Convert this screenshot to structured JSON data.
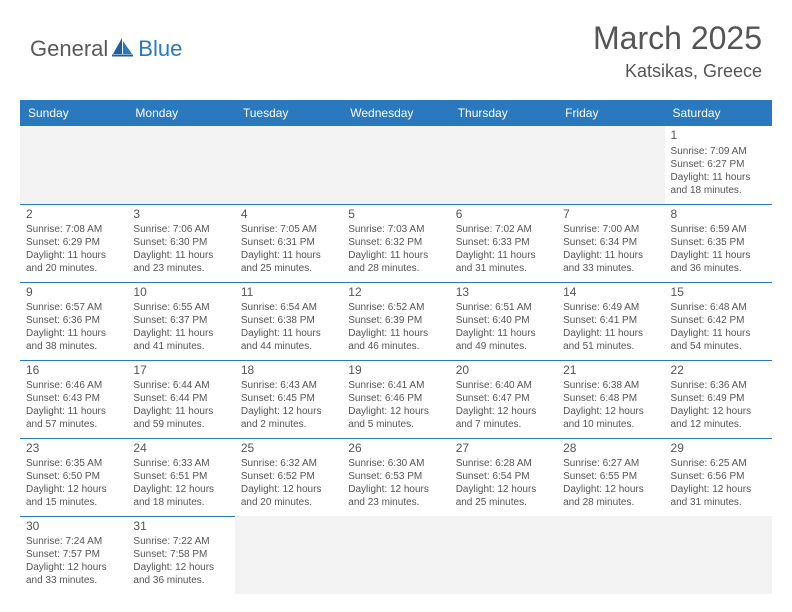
{
  "brand": {
    "part1": "General",
    "part2": "Blue"
  },
  "title": {
    "month_year": "March 2025",
    "location": "Katsikas, Greece"
  },
  "colors": {
    "header_bg": "#2a78bd",
    "header_text": "#ffffff",
    "border": "#2a78bd",
    "empty_bg": "#f3f3f3",
    "body_text": "#555555",
    "logo_gray": "#5a5a5a",
    "logo_blue": "#2a78bd"
  },
  "day_headers": [
    "Sunday",
    "Monday",
    "Tuesday",
    "Wednesday",
    "Thursday",
    "Friday",
    "Saturday"
  ],
  "weeks": [
    [
      null,
      null,
      null,
      null,
      null,
      null,
      {
        "n": "1",
        "sr": "7:09 AM",
        "ss": "6:27 PM",
        "dl": "11 hours and 18 minutes."
      }
    ],
    [
      {
        "n": "2",
        "sr": "7:08 AM",
        "ss": "6:29 PM",
        "dl": "11 hours and 20 minutes."
      },
      {
        "n": "3",
        "sr": "7:06 AM",
        "ss": "6:30 PM",
        "dl": "11 hours and 23 minutes."
      },
      {
        "n": "4",
        "sr": "7:05 AM",
        "ss": "6:31 PM",
        "dl": "11 hours and 25 minutes."
      },
      {
        "n": "5",
        "sr": "7:03 AM",
        "ss": "6:32 PM",
        "dl": "11 hours and 28 minutes."
      },
      {
        "n": "6",
        "sr": "7:02 AM",
        "ss": "6:33 PM",
        "dl": "11 hours and 31 minutes."
      },
      {
        "n": "7",
        "sr": "7:00 AM",
        "ss": "6:34 PM",
        "dl": "11 hours and 33 minutes."
      },
      {
        "n": "8",
        "sr": "6:59 AM",
        "ss": "6:35 PM",
        "dl": "11 hours and 36 minutes."
      }
    ],
    [
      {
        "n": "9",
        "sr": "6:57 AM",
        "ss": "6:36 PM",
        "dl": "11 hours and 38 minutes."
      },
      {
        "n": "10",
        "sr": "6:55 AM",
        "ss": "6:37 PM",
        "dl": "11 hours and 41 minutes."
      },
      {
        "n": "11",
        "sr": "6:54 AM",
        "ss": "6:38 PM",
        "dl": "11 hours and 44 minutes."
      },
      {
        "n": "12",
        "sr": "6:52 AM",
        "ss": "6:39 PM",
        "dl": "11 hours and 46 minutes."
      },
      {
        "n": "13",
        "sr": "6:51 AM",
        "ss": "6:40 PM",
        "dl": "11 hours and 49 minutes."
      },
      {
        "n": "14",
        "sr": "6:49 AM",
        "ss": "6:41 PM",
        "dl": "11 hours and 51 minutes."
      },
      {
        "n": "15",
        "sr": "6:48 AM",
        "ss": "6:42 PM",
        "dl": "11 hours and 54 minutes."
      }
    ],
    [
      {
        "n": "16",
        "sr": "6:46 AM",
        "ss": "6:43 PM",
        "dl": "11 hours and 57 minutes."
      },
      {
        "n": "17",
        "sr": "6:44 AM",
        "ss": "6:44 PM",
        "dl": "11 hours and 59 minutes."
      },
      {
        "n": "18",
        "sr": "6:43 AM",
        "ss": "6:45 PM",
        "dl": "12 hours and 2 minutes."
      },
      {
        "n": "19",
        "sr": "6:41 AM",
        "ss": "6:46 PM",
        "dl": "12 hours and 5 minutes."
      },
      {
        "n": "20",
        "sr": "6:40 AM",
        "ss": "6:47 PM",
        "dl": "12 hours and 7 minutes."
      },
      {
        "n": "21",
        "sr": "6:38 AM",
        "ss": "6:48 PM",
        "dl": "12 hours and 10 minutes."
      },
      {
        "n": "22",
        "sr": "6:36 AM",
        "ss": "6:49 PM",
        "dl": "12 hours and 12 minutes."
      }
    ],
    [
      {
        "n": "23",
        "sr": "6:35 AM",
        "ss": "6:50 PM",
        "dl": "12 hours and 15 minutes."
      },
      {
        "n": "24",
        "sr": "6:33 AM",
        "ss": "6:51 PM",
        "dl": "12 hours and 18 minutes."
      },
      {
        "n": "25",
        "sr": "6:32 AM",
        "ss": "6:52 PM",
        "dl": "12 hours and 20 minutes."
      },
      {
        "n": "26",
        "sr": "6:30 AM",
        "ss": "6:53 PM",
        "dl": "12 hours and 23 minutes."
      },
      {
        "n": "27",
        "sr": "6:28 AM",
        "ss": "6:54 PM",
        "dl": "12 hours and 25 minutes."
      },
      {
        "n": "28",
        "sr": "6:27 AM",
        "ss": "6:55 PM",
        "dl": "12 hours and 28 minutes."
      },
      {
        "n": "29",
        "sr": "6:25 AM",
        "ss": "6:56 PM",
        "dl": "12 hours and 31 minutes."
      }
    ],
    [
      {
        "n": "30",
        "sr": "7:24 AM",
        "ss": "7:57 PM",
        "dl": "12 hours and 33 minutes."
      },
      {
        "n": "31",
        "sr": "7:22 AM",
        "ss": "7:58 PM",
        "dl": "12 hours and 36 minutes."
      },
      null,
      null,
      null,
      null,
      null
    ]
  ],
  "labels": {
    "sunrise": "Sunrise:",
    "sunset": "Sunset:",
    "daylight": "Daylight:"
  }
}
